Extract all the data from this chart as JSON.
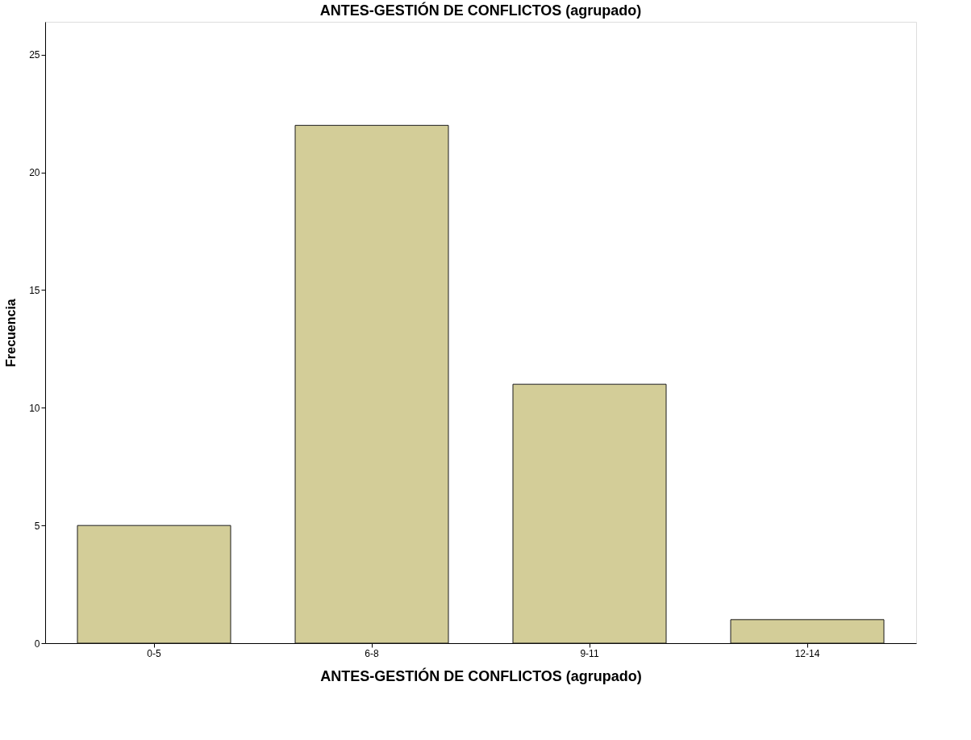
{
  "chart_data": {
    "type": "bar",
    "title": "ANTES-GESTIÓN DE CONFLICTOS (agrupado)",
    "xlabel": "ANTES-GESTIÓN DE CONFLICTOS (agrupado)",
    "ylabel": "Frecuencia",
    "categories": [
      "0-5",
      "6-8",
      "9-11",
      "12-14"
    ],
    "values": [
      5,
      22,
      11,
      1
    ],
    "color": "#d3cd98",
    "ylim": [
      0,
      26.4
    ],
    "yticks": [
      0,
      5,
      10,
      15,
      20,
      25
    ],
    "grid": false
  }
}
